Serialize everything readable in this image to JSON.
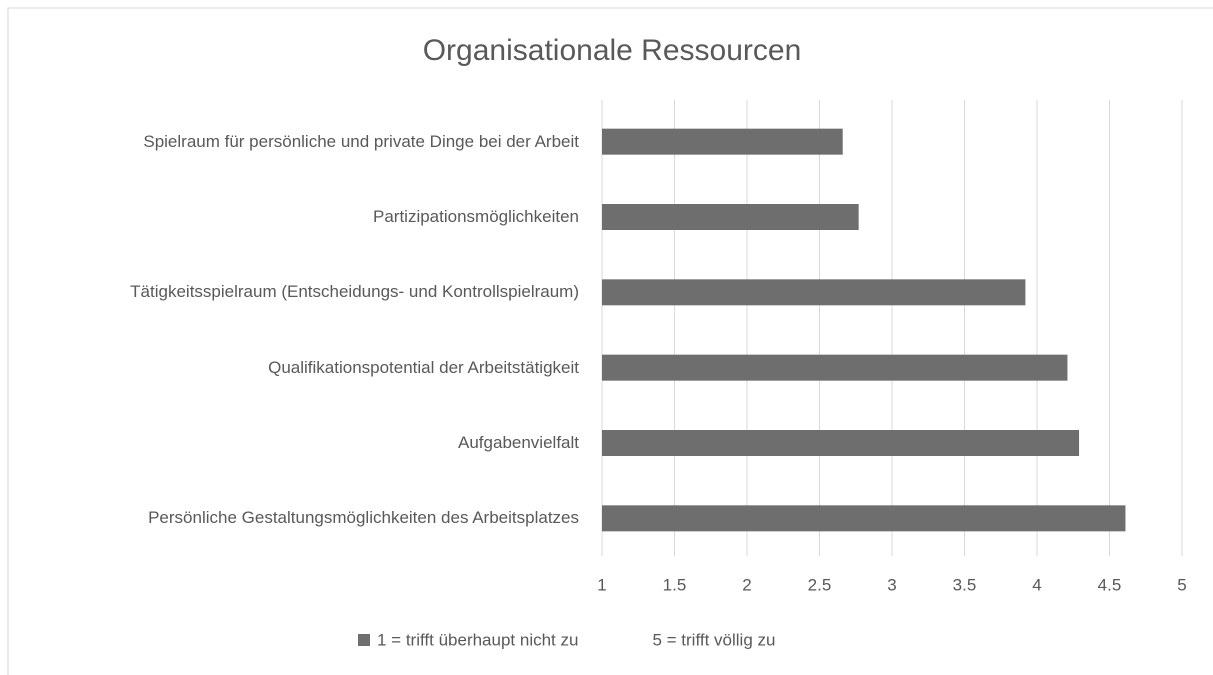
{
  "chart_data": {
    "type": "bar",
    "orientation": "horizontal",
    "title": "Organisationale Ressourcen",
    "categories": [
      "Spielraum für persönliche und private Dinge bei der Arbeit",
      "Partizipationsmöglichkeiten",
      "Tätigkeitsspielraum (Entscheidungs- und Kontrollspielraum)",
      "Qualifikationspotential der Arbeitstätigkeit",
      "Aufgabenvielfalt",
      "Persönliche Gestaltungsmöglichkeiten des Arbeitsplatzes"
    ],
    "series": [
      {
        "name": "1 = trifft überhaupt nicht zu",
        "color": "#6e6e6e",
        "values": [
          2.66,
          2.77,
          3.92,
          4.21,
          4.29,
          4.61
        ]
      },
      {
        "name": "5 = trifft völlig zu",
        "color": null,
        "values": [
          null,
          null,
          null,
          null,
          null,
          null
        ]
      }
    ],
    "xlim": [
      1,
      5
    ],
    "xticks": [
      1,
      1.5,
      2,
      2.5,
      3,
      3.5,
      4,
      4.5,
      5
    ],
    "grid": true,
    "legend": "bottom"
  }
}
